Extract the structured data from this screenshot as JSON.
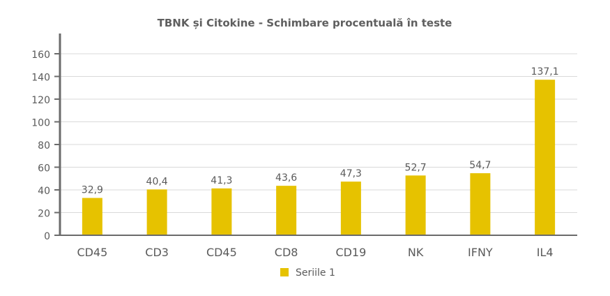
{
  "chart_data": {
    "type": "bar",
    "title": "TBNK și Citokine - Schimbare procentuală în teste",
    "categories": [
      "CD45",
      "CD3",
      "CD45",
      "CD8",
      "CD19",
      "NK",
      "IFNY",
      "IL4"
    ],
    "series": [
      {
        "name": "Seriile 1",
        "values": [
          32.9,
          40.4,
          41.3,
          43.6,
          47.3,
          52.7,
          54.7,
          137.1
        ],
        "labels": [
          "32,9",
          "40,4",
          "41,3",
          "43,6",
          "47,3",
          "52,7",
          "54,7",
          "137,1"
        ],
        "color": "#e6c200"
      }
    ],
    "ylim": [
      0,
      160
    ],
    "yticks": [
      0,
      20,
      40,
      60,
      80,
      100,
      120,
      140,
      160
    ],
    "grid": true,
    "legend_position": "bottom"
  }
}
